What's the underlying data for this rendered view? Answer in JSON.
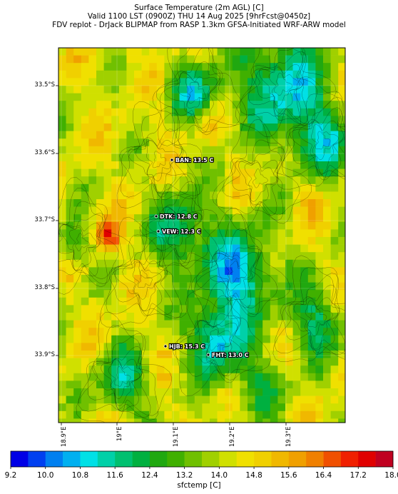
{
  "title": {
    "line1": "Surface Temperature (2m AGL) [C]",
    "line2": "Valid 1100 LST (0900Z) THU 14 Aug 2025 [9hrFcst@0450z]",
    "line3": "FDV replot - DrJack BLIPMAP from RASP 1.3km GFSA-Initiated WRF-ARW model"
  },
  "axes": {
    "lat_ticks": [
      "33.5°S",
      "33.6°S",
      "33.7°S",
      "33.8°S",
      "33.9°S"
    ],
    "lon_ticks": [
      "18.9°E",
      "19°E",
      "19.1°E",
      "19.2°E",
      "19.3°E"
    ]
  },
  "stations": [
    {
      "label": "BAN: 13.5 C"
    },
    {
      "label": "DTK: 12.8 C"
    },
    {
      "label": "VEW: 12.3 C"
    },
    {
      "label": "HJB: 15.3 C"
    },
    {
      "label": "FHT: 13.0 C"
    }
  ],
  "colorbar": {
    "label": "sfctemp [C]",
    "ticks": [
      "9.2",
      "10.0",
      "10.8",
      "11.6",
      "12.4",
      "13.2",
      "14.0",
      "14.8",
      "15.6",
      "16.4",
      "17.2",
      "18.0"
    ],
    "colors": [
      "#0000e6",
      "#0040f0",
      "#0080f0",
      "#00b0f0",
      "#00e0e6",
      "#00d0a8",
      "#00c070",
      "#00b040",
      "#20a810",
      "#40b000",
      "#70c000",
      "#a0d000",
      "#d0e000",
      "#f0e000",
      "#f0d000",
      "#f0b800",
      "#f0a000",
      "#f08000",
      "#f05000",
      "#f02000",
      "#e00000",
      "#c00020"
    ]
  },
  "chart_data": {
    "type": "heatmap",
    "variable": "sfctemp",
    "units": "C",
    "value_range": [
      9.2,
      18.8
    ],
    "stations": [
      {
        "name": "BAN",
        "value": 13.5
      },
      {
        "name": "DTK",
        "value": 12.8
      },
      {
        "name": "VEW",
        "value": 12.3
      },
      {
        "name": "HJB",
        "value": 15.3
      },
      {
        "name": "FHT",
        "value": 13.0
      }
    ]
  }
}
